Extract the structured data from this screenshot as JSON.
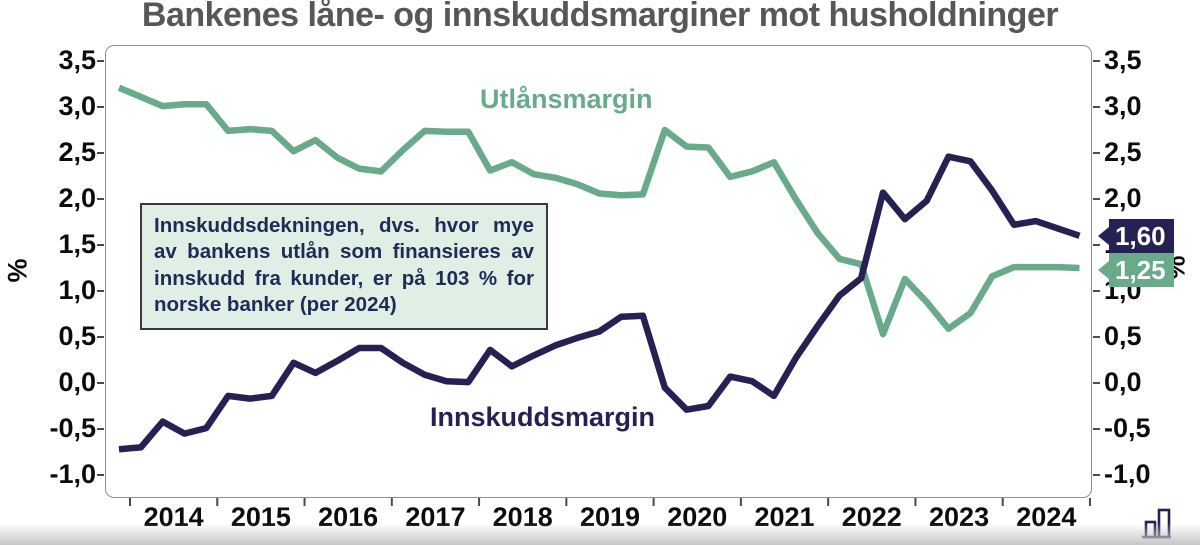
{
  "title": "Bankenes låne- og innskuddsmarginer mot husholdninger",
  "annotation_box": {
    "text": "Innskuddsdekningen, dvs. hvor mye av bankens utlån som finansieres av innskudd fra kunder, er på 103 % for norske banker (per 2024)"
  },
  "y_axis_unit_left": "%",
  "y_axis_unit_right": "%",
  "end_labels": [
    {
      "series": "Innskuddsmargin",
      "text": "1,60",
      "color": "#262153"
    },
    {
      "series": "Utlånsmargin",
      "text": "1,25",
      "color": "#69aa8b"
    }
  ],
  "logo": {
    "icon": "bar-chart-logo",
    "color": "#262153"
  },
  "chart_data": {
    "type": "line",
    "title": "Bankenes låne- og innskuddsmarginer mot husholdninger",
    "ylabel": "%",
    "ylabel_right": "%",
    "ylim": [
      -1.0,
      3.5
    ],
    "grid": false,
    "legend_position": "inline-labels",
    "frequency": "quarterly",
    "y_ticks": [
      3.5,
      3.0,
      2.5,
      2.0,
      1.5,
      1.0,
      0.5,
      0.0,
      -0.5,
      -1.0
    ],
    "y_tick_labels": [
      "3,5",
      "3,0",
      "2,5",
      "2,0",
      "1,5",
      "1,0",
      "0,5",
      "0,0",
      "-0,5",
      "-1,0"
    ],
    "x_tick_labels": [
      "2014",
      "2015",
      "2016",
      "2017",
      "2018",
      "2019",
      "2020",
      "2021",
      "2022",
      "2023",
      "2024"
    ],
    "quarters": [
      "2013Q4",
      "2014Q1",
      "2014Q2",
      "2014Q3",
      "2014Q4",
      "2015Q1",
      "2015Q2",
      "2015Q3",
      "2015Q4",
      "2016Q1",
      "2016Q2",
      "2016Q3",
      "2016Q4",
      "2017Q1",
      "2017Q2",
      "2017Q3",
      "2017Q4",
      "2018Q1",
      "2018Q2",
      "2018Q3",
      "2018Q4",
      "2019Q1",
      "2019Q2",
      "2019Q3",
      "2019Q4",
      "2020Q1",
      "2020Q2",
      "2020Q3",
      "2020Q4",
      "2021Q1",
      "2021Q2",
      "2021Q3",
      "2021Q4",
      "2022Q1",
      "2022Q2",
      "2022Q3",
      "2022Q4",
      "2023Q1",
      "2023Q2",
      "2023Q3",
      "2023Q4",
      "2024Q1",
      "2024Q2",
      "2024Q3",
      "2024Q4"
    ],
    "series": [
      {
        "name": "Utlånsmargin",
        "color": "#69aa8b",
        "end_value_label": "1,25",
        "values": [
          3.21,
          3.11,
          3.01,
          3.03,
          3.03,
          2.74,
          2.76,
          2.74,
          2.52,
          2.64,
          2.45,
          2.33,
          2.3,
          2.53,
          2.74,
          2.73,
          2.73,
          2.31,
          2.4,
          2.27,
          2.23,
          2.16,
          2.06,
          2.04,
          2.05,
          2.75,
          2.57,
          2.56,
          2.24,
          2.3,
          2.4,
          2.0,
          1.63,
          1.35,
          1.29,
          0.53,
          1.13,
          0.88,
          0.59,
          0.76,
          1.16,
          1.26,
          1.26,
          1.26,
          1.25
        ]
      },
      {
        "name": "Innskuddsmargin",
        "color": "#262153",
        "end_value_label": "1,60",
        "values": [
          -0.72,
          -0.7,
          -0.42,
          -0.55,
          -0.49,
          -0.14,
          -0.17,
          -0.14,
          0.22,
          0.11,
          0.24,
          0.38,
          0.38,
          0.22,
          0.09,
          0.02,
          0.01,
          0.36,
          0.18,
          0.3,
          0.41,
          0.49,
          0.56,
          0.72,
          0.73,
          -0.05,
          -0.29,
          -0.25,
          0.07,
          0.02,
          -0.14,
          0.27,
          0.62,
          0.95,
          1.14,
          2.07,
          1.78,
          1.98,
          2.46,
          2.41,
          2.09,
          1.72,
          1.76,
          1.68,
          1.6
        ]
      }
    ]
  }
}
